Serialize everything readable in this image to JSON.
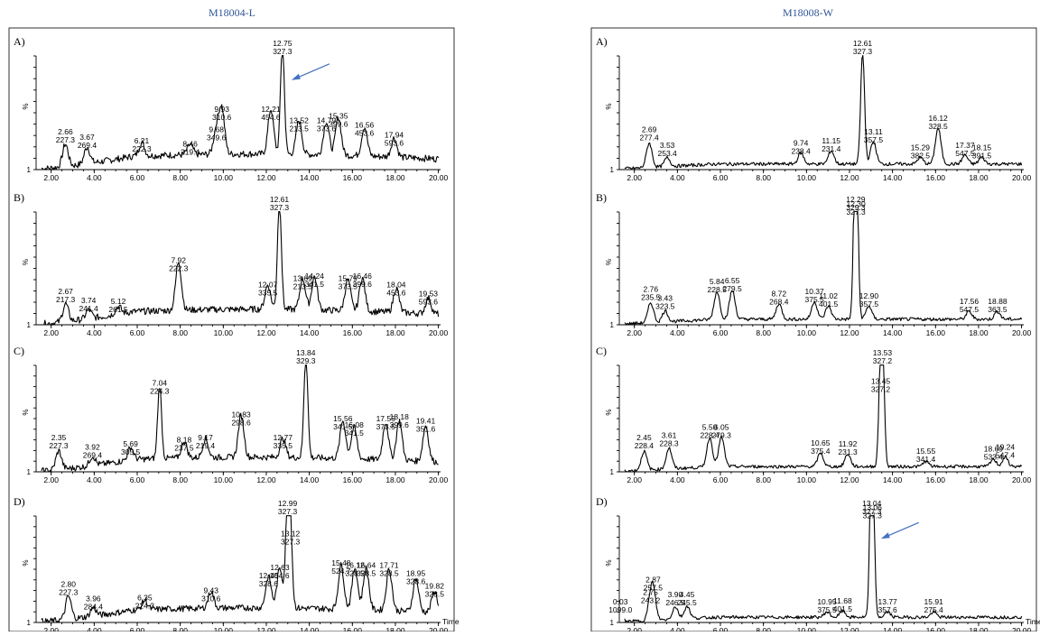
{
  "colors": {
    "title": "#2f5597",
    "arrow": "#4472c4",
    "trace": "#000000"
  },
  "chart_data": [
    {
      "type": "line",
      "title": "M18004-L",
      "x_axis": {
        "range": [
          1.3,
          20.1
        ],
        "ticks": [
          "2.00",
          "4.00",
          "6.00",
          "8.00",
          "10.00",
          "12.00",
          "14.00",
          "16.00",
          "18.00",
          "20.00"
        ],
        "label": "Time"
      },
      "y_axis": {
        "top_label": "",
        "mid_label": "%",
        "bottom_label": "1"
      },
      "panels": [
        {
          "label": "A)",
          "peaks": [
            {
              "rt": "2.66",
              "mz": "227.3",
              "x": 2.66,
              "h": 0.2
            },
            {
              "rt": "3.67",
              "mz": "269.4",
              "x": 3.67,
              "h": 0.15
            },
            {
              "rt": "6.21",
              "mz": "222.3",
              "x": 6.21,
              "h": 0.12
            },
            {
              "rt": "8.46",
              "mz": "219.4",
              "x": 8.46,
              "h": 0.09
            },
            {
              "rt": "9.68",
              "mz": "349.6",
              "x": 9.68,
              "h": 0.22
            },
            {
              "rt": "9.93",
              "mz": "310.6",
              "x": 9.93,
              "h": 0.4
            },
            {
              "rt": "12.21",
              "mz": "454.6",
              "x": 12.21,
              "h": 0.4
            },
            {
              "rt": "12.75",
              "mz": "327.3",
              "x": 12.75,
              "h": 1.0
            },
            {
              "rt": "13.52",
              "mz": "213.5",
              "x": 13.52,
              "h": 0.3
            },
            {
              "rt": "14.79",
              "mz": "373.6",
              "x": 14.79,
              "h": 0.3
            },
            {
              "rt": "15.35",
              "mz": "399.6",
              "x": 15.35,
              "h": 0.34
            },
            {
              "rt": "16.56",
              "mz": "453.6",
              "x": 16.56,
              "h": 0.26
            },
            {
              "rt": "17.94",
              "mz": "593.6",
              "x": 17.94,
              "h": 0.17
            }
          ],
          "arrow": true
        },
        {
          "label": "B)",
          "peaks": [
            {
              "rt": "2.67",
              "mz": "217.3",
              "x": 2.67,
              "h": 0.16
            },
            {
              "rt": "3.74",
              "mz": "241.4",
              "x": 3.74,
              "h": 0.08
            },
            {
              "rt": "5.12",
              "mz": "261.5",
              "x": 5.12,
              "h": 0.07
            },
            {
              "rt": "7.92",
              "mz": "222.3",
              "x": 7.92,
              "h": 0.44
            },
            {
              "rt": "12.07",
              "mz": "335.5",
              "x": 12.07,
              "h": 0.22
            },
            {
              "rt": "12.61",
              "mz": "327.3",
              "x": 12.61,
              "h": 1.0
            },
            {
              "rt": "13.69",
              "mz": "213.5",
              "x": 13.69,
              "h": 0.28
            },
            {
              "rt": "14.24",
              "mz": "341.5",
              "x": 14.24,
              "h": 0.3
            },
            {
              "rt": "15.79",
              "mz": "373.5",
              "x": 15.79,
              "h": 0.28
            },
            {
              "rt": "16.46",
              "mz": "399.6",
              "x": 16.46,
              "h": 0.3
            },
            {
              "rt": "18.04",
              "mz": "453.6",
              "x": 18.04,
              "h": 0.22
            },
            {
              "rt": "19.53",
              "mz": "593.6",
              "x": 19.53,
              "h": 0.14
            }
          ]
        },
        {
          "label": "C)",
          "peaks": [
            {
              "rt": "2.35",
              "mz": "227.3",
              "x": 2.35,
              "h": 0.18
            },
            {
              "rt": "3.92",
              "mz": "269.4",
              "x": 3.92,
              "h": 0.09
            },
            {
              "rt": "5.69",
              "mz": "305.5",
              "x": 5.69,
              "h": 0.12
            },
            {
              "rt": "7.04",
              "mz": "224.3",
              "x": 7.04,
              "h": 0.7
            },
            {
              "rt": "8.18",
              "mz": "237.5",
              "x": 8.18,
              "h": 0.16
            },
            {
              "rt": "9.17",
              "mz": "219.4",
              "x": 9.17,
              "h": 0.18
            },
            {
              "rt": "10.83",
              "mz": "298.6",
              "x": 10.83,
              "h": 0.4
            },
            {
              "rt": "12.77",
              "mz": "335.5",
              "x": 12.77,
              "h": 0.18
            },
            {
              "rt": "13.84",
              "mz": "329.3",
              "x": 13.84,
              "h": 1.0
            },
            {
              "rt": "15.56",
              "mz": "341.5",
              "x": 15.56,
              "h": 0.36
            },
            {
              "rt": "16.08",
              "mz": "341.5",
              "x": 16.08,
              "h": 0.3
            },
            {
              "rt": "17.55",
              "mz": "373.5",
              "x": 17.55,
              "h": 0.36
            },
            {
              "rt": "18.18",
              "mz": "399.6",
              "x": 18.18,
              "h": 0.38
            },
            {
              "rt": "19.41",
              "mz": "351.6",
              "x": 19.41,
              "h": 0.34
            }
          ]
        },
        {
          "label": "D)",
          "peaks": [
            {
              "rt": "2.80",
              "mz": "227.3",
              "x": 2.8,
              "h": 0.22
            },
            {
              "rt": "3.96",
              "mz": "284.4",
              "x": 3.96,
              "h": 0.08
            },
            {
              "rt": "6.35",
              "mz": "224.3",
              "x": 6.35,
              "h": 0.09
            },
            {
              "rt": "9.43",
              "mz": "310.6",
              "x": 9.43,
              "h": 0.16
            },
            {
              "rt": "12.10",
              "mz": "328.6",
              "x": 12.1,
              "h": 0.3
            },
            {
              "rt": "12.63",
              "mz": "454.6",
              "x": 12.63,
              "h": 0.38
            },
            {
              "rt": "12.99",
              "mz": "327.3",
              "x": 12.99,
              "h": 1.0
            },
            {
              "rt": "13.12",
              "mz": "327.3",
              "x": 13.12,
              "h": 0.7
            },
            {
              "rt": "15.48",
              "mz": "524.7",
              "x": 15.48,
              "h": 0.42
            },
            {
              "rt": "16.12",
              "mz": "328.5",
              "x": 16.12,
              "h": 0.4
            },
            {
              "rt": "16.64",
              "mz": "328.5",
              "x": 16.64,
              "h": 0.4
            },
            {
              "rt": "17.71",
              "mz": "328.5",
              "x": 17.71,
              "h": 0.4
            },
            {
              "rt": "18.95",
              "mz": "328.6",
              "x": 18.95,
              "h": 0.32
            },
            {
              "rt": "19.82",
              "mz": "328.5",
              "x": 19.82,
              "h": 0.2
            }
          ]
        }
      ]
    },
    {
      "type": "line",
      "title": "M18008-W",
      "x_axis": {
        "range": [
          1.3,
          20.1
        ],
        "ticks": [
          "2.00",
          "4.00",
          "6.00",
          "8.00",
          "10.00",
          "12.00",
          "14.00",
          "16.00",
          "18.00",
          "20.00"
        ],
        "label": "Time"
      },
      "y_axis": {
        "top_label": "",
        "mid_label": "%",
        "bottom_label": "1"
      },
      "panels": [
        {
          "label": "A)",
          "peaks": [
            {
              "rt": "2.69",
              "mz": "277.4",
              "x": 2.69,
              "h": 0.22
            },
            {
              "rt": "3.53",
              "mz": "253.4",
              "x": 3.53,
              "h": 0.08
            },
            {
              "rt": "9.74",
              "mz": "238.4",
              "x": 9.74,
              "h": 0.1
            },
            {
              "rt": "11.15",
              "mz": "231.4",
              "x": 11.15,
              "h": 0.12
            },
            {
              "rt": "12.61",
              "mz": "327.3",
              "x": 12.61,
              "h": 1.0
            },
            {
              "rt": "13.11",
              "mz": "357.5",
              "x": 13.11,
              "h": 0.2
            },
            {
              "rt": "15.29",
              "mz": "382.5",
              "x": 15.29,
              "h": 0.06
            },
            {
              "rt": "16.12",
              "mz": "328.5",
              "x": 16.12,
              "h": 0.32
            },
            {
              "rt": "17.37",
              "mz": "547.5",
              "x": 17.37,
              "h": 0.08
            },
            {
              "rt": "18.15",
              "mz": "391.5",
              "x": 18.15,
              "h": 0.06
            }
          ]
        },
        {
          "label": "B)",
          "peaks": [
            {
              "rt": "2.76",
              "mz": "235.5",
              "x": 2.76,
              "h": 0.18
            },
            {
              "rt": "3.43",
              "mz": "323.5",
              "x": 3.43,
              "h": 0.1
            },
            {
              "rt": "5.84",
              "mz": "228.5",
              "x": 5.84,
              "h": 0.25
            },
            {
              "rt": "6.55",
              "mz": "279.5",
              "x": 6.55,
              "h": 0.26
            },
            {
              "rt": "8.72",
              "mz": "268.4",
              "x": 8.72,
              "h": 0.14
            },
            {
              "rt": "10.37",
              "mz": "375.5",
              "x": 10.37,
              "h": 0.16
            },
            {
              "rt": "11.02",
              "mz": "401.5",
              "x": 11.02,
              "h": 0.12
            },
            {
              "rt": "12.29",
              "mz": "329.3",
              "x": 12.29,
              "h": 1.0
            },
            {
              "rt": "12.30",
              "mz": "327.3",
              "x": 12.3,
              "h": 0.95
            },
            {
              "rt": "12.90",
              "mz": "357.5",
              "x": 12.9,
              "h": 0.12
            },
            {
              "rt": "17.56",
              "mz": "547.5",
              "x": 17.56,
              "h": 0.07
            },
            {
              "rt": "18.88",
              "mz": "363.5",
              "x": 18.88,
              "h": 0.07
            }
          ]
        },
        {
          "label": "C)",
          "peaks": [
            {
              "rt": "2.45",
              "mz": "228.4",
              "x": 2.45,
              "h": 0.18
            },
            {
              "rt": "3.61",
              "mz": "228.3",
              "x": 3.61,
              "h": 0.2
            },
            {
              "rt": "5.50",
              "mz": "228.4",
              "x": 5.5,
              "h": 0.28
            },
            {
              "rt": "6.05",
              "mz": "279.3",
              "x": 6.05,
              "h": 0.28
            },
            {
              "rt": "10.65",
              "mz": "375.4",
              "x": 10.65,
              "h": 0.13
            },
            {
              "rt": "11.92",
              "mz": "231.3",
              "x": 11.92,
              "h": 0.12
            },
            {
              "rt": "13.45",
              "mz": "327.2",
              "x": 13.45,
              "h": 0.72
            },
            {
              "rt": "13.53",
              "mz": "327.2",
              "x": 13.53,
              "h": 1.0
            },
            {
              "rt": "15.55",
              "mz": "341.4",
              "x": 15.55,
              "h": 0.05
            },
            {
              "rt": "18.69",
              "mz": "533.4",
              "x": 18.69,
              "h": 0.07
            },
            {
              "rt": "19.24",
              "mz": "547.4",
              "x": 19.24,
              "h": 0.09
            }
          ]
        },
        {
          "label": "D)",
          "peaks": [
            {
              "rt": "0.03",
              "mz": "1099.0",
              "x": 1.35,
              "h": 0.05
            },
            {
              "rt": "2.75",
              "mz": "243.2",
              "x": 2.75,
              "h": 0.14
            },
            {
              "rt": "2.87",
              "mz": "257.5",
              "x": 2.87,
              "h": 0.26
            },
            {
              "rt": "3.90",
              "mz": "246.5",
              "x": 3.9,
              "h": 0.12
            },
            {
              "rt": "4.45",
              "mz": "245.5",
              "x": 4.45,
              "h": 0.12
            },
            {
              "rt": "10.95",
              "mz": "375.5",
              "x": 10.95,
              "h": 0.05
            },
            {
              "rt": "11.68",
              "mz": "401.5",
              "x": 11.68,
              "h": 0.06
            },
            {
              "rt": "13.04",
              "mz": "327.3",
              "x": 13.04,
              "h": 1.0
            },
            {
              "rt": "13.06",
              "mz": "327.3",
              "x": 13.06,
              "h": 0.95
            },
            {
              "rt": "13.77",
              "mz": "357.6",
              "x": 13.77,
              "h": 0.05
            },
            {
              "rt": "15.91",
              "mz": "275.4",
              "x": 15.91,
              "h": 0.05
            }
          ],
          "arrow": true
        }
      ]
    }
  ]
}
